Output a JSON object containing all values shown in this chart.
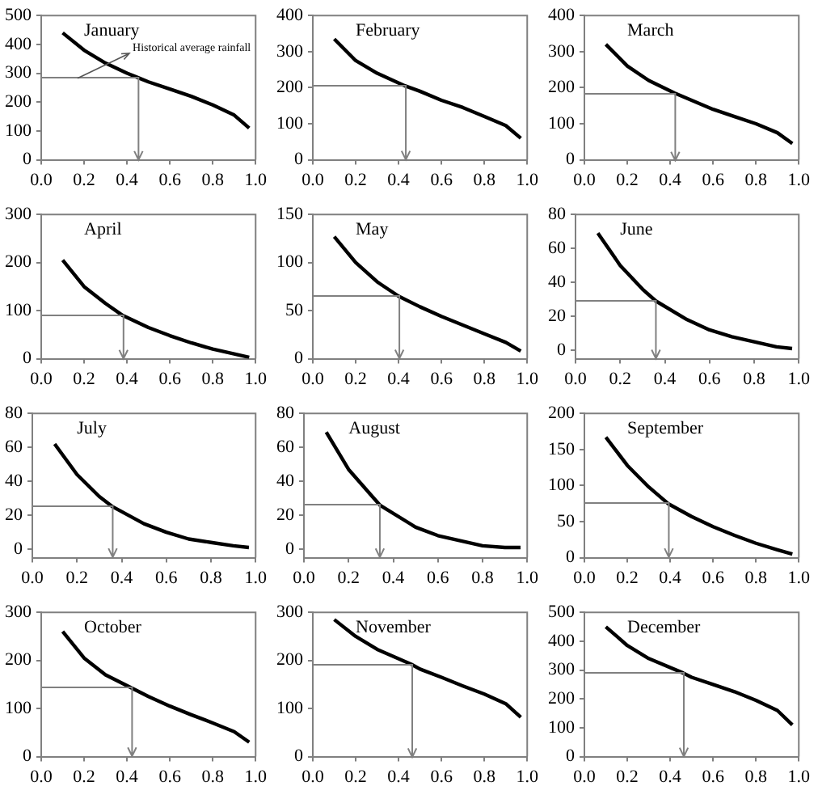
{
  "chart_data": [
    {
      "type": "line",
      "title": "January",
      "annotations": [
        "Historical average rainfall"
      ],
      "x": [
        0.1,
        0.2,
        0.3,
        0.4,
        0.45,
        0.5,
        0.6,
        0.7,
        0.8,
        0.9,
        0.97
      ],
      "xlim": [
        0,
        1
      ],
      "xticks": [
        {
          "value": 0,
          "label": "0.0"
        },
        {
          "value": 0.2,
          "label": "0.2"
        },
        {
          "value": 0.4,
          "label": "0.4"
        },
        {
          "value": 0.6,
          "label": "0.6"
        },
        {
          "value": 0.8,
          "label": "0.8"
        },
        {
          "value": 1,
          "label": "1.0"
        }
      ],
      "ylim": [
        0,
        500
      ],
      "yticks": [
        0,
        100,
        200,
        300,
        400,
        500
      ],
      "series": [
        {
          "color": "#000000",
          "values": [
            440,
            380,
            335,
            300,
            285,
            270,
            245,
            220,
            190,
            155,
            110
          ]
        },
        {
          "color": "#808080",
          "x": [
            0,
            0.45,
            0.45
          ],
          "values": [
            285,
            285,
            0
          ]
        }
      ]
    },
    {
      "type": "line",
      "title": "February",
      "x": [
        0.1,
        0.2,
        0.3,
        0.43,
        0.5,
        0.6,
        0.7,
        0.8,
        0.9,
        0.97
      ],
      "xlim": [
        0,
        1
      ],
      "xticks": [
        {
          "value": 0,
          "label": "0.0"
        },
        {
          "value": 0.2,
          "label": "0.2"
        },
        {
          "value": 0.4,
          "label": "0.4"
        },
        {
          "value": 0.6,
          "label": "0.6"
        },
        {
          "value": 0.8,
          "label": "0.8"
        },
        {
          "value": 1,
          "label": "1.0"
        }
      ],
      "ylim": [
        0,
        400
      ],
      "yticks": [
        0,
        100,
        200,
        300,
        400
      ],
      "series": [
        {
          "color": "#000000",
          "values": [
            335,
            275,
            240,
            205,
            190,
            165,
            145,
            120,
            95,
            60
          ]
        },
        {
          "color": "#808080",
          "x": [
            0,
            0.43,
            0.43
          ],
          "values": [
            205,
            205,
            0
          ]
        }
      ]
    },
    {
      "type": "line",
      "title": "March",
      "x": [
        0.1,
        0.2,
        0.3,
        0.42,
        0.5,
        0.6,
        0.7,
        0.8,
        0.9,
        0.97
      ],
      "xlim": [
        0,
        1
      ],
      "xticks": [
        {
          "value": 0,
          "label": "0.0"
        },
        {
          "value": 0.2,
          "label": "0.2"
        },
        {
          "value": 0.4,
          "label": "0.4"
        },
        {
          "value": 0.6,
          "label": "0.6"
        },
        {
          "value": 0.8,
          "label": "0.8"
        },
        {
          "value": 1,
          "label": "1.0"
        }
      ],
      "ylim": [
        0,
        400
      ],
      "yticks": [
        0,
        100,
        200,
        300,
        400
      ],
      "series": [
        {
          "color": "#000000",
          "values": [
            320,
            260,
            220,
            185,
            165,
            140,
            120,
            100,
            75,
            45
          ]
        },
        {
          "color": "#808080",
          "x": [
            0,
            0.42,
            0.42
          ],
          "values": [
            185,
            185,
            0
          ]
        }
      ]
    },
    {
      "type": "line",
      "title": "April",
      "x": [
        0.1,
        0.2,
        0.3,
        0.38,
        0.5,
        0.6,
        0.7,
        0.8,
        0.9,
        0.97
      ],
      "xlim": [
        0,
        1
      ],
      "xticks": [
        {
          "value": 0,
          "label": "0.0"
        },
        {
          "value": 0.2,
          "label": "0.2"
        },
        {
          "value": 0.4,
          "label": "0.4"
        },
        {
          "value": 0.6,
          "label": "0.6"
        },
        {
          "value": 0.8,
          "label": "0.8"
        },
        {
          "value": 1,
          "label": "1.0"
        }
      ],
      "ylim": [
        0,
        300
      ],
      "yticks": [
        0,
        100,
        200,
        300
      ],
      "series": [
        {
          "color": "#000000",
          "values": [
            205,
            150,
            115,
            90,
            65,
            48,
            33,
            20,
            10,
            3
          ]
        },
        {
          "color": "#808080",
          "x": [
            0,
            0.38,
            0.38
          ],
          "values": [
            90,
            90,
            0
          ]
        }
      ]
    },
    {
      "type": "line",
      "title": "May",
      "x": [
        0.1,
        0.2,
        0.3,
        0.4,
        0.5,
        0.6,
        0.7,
        0.8,
        0.9,
        0.97
      ],
      "xlim": [
        0,
        1
      ],
      "xticks": [
        {
          "value": 0,
          "label": "0.0"
        },
        {
          "value": 0.2,
          "label": "0.2"
        },
        {
          "value": 0.4,
          "label": "0.4"
        },
        {
          "value": 0.6,
          "label": "0.6"
        },
        {
          "value": 0.8,
          "label": "0.8"
        },
        {
          "value": 1,
          "label": "1.0"
        }
      ],
      "ylim": [
        0,
        150
      ],
      "yticks": [
        0,
        50,
        100,
        150
      ],
      "series": [
        {
          "color": "#000000",
          "values": [
            127,
            100,
            80,
            65,
            54,
            44,
            35,
            26,
            17,
            8
          ]
        },
        {
          "color": "#808080",
          "x": [
            0,
            0.4,
            0.4
          ],
          "values": [
            65,
            65,
            0
          ]
        }
      ]
    },
    {
      "type": "line",
      "title": "June",
      "x": [
        0.1,
        0.2,
        0.3,
        0.36,
        0.5,
        0.6,
        0.7,
        0.8,
        0.9,
        0.97
      ],
      "xlim": [
        0,
        1
      ],
      "xticks": [
        {
          "value": 0,
          "label": "0.0"
        },
        {
          "value": 0.2,
          "label": "0.2"
        },
        {
          "value": 0.4,
          "label": "0.4"
        },
        {
          "value": 0.6,
          "label": "0.6"
        },
        {
          "value": 0.8,
          "label": "0.8"
        },
        {
          "value": 1,
          "label": "1.0"
        }
      ],
      "ylim": [
        -5,
        80
      ],
      "yticks": [
        0,
        20,
        40,
        60,
        80
      ],
      "series": [
        {
          "color": "#000000",
          "values": [
            69,
            50,
            36,
            29,
            18,
            12,
            8,
            5,
            2,
            1
          ]
        },
        {
          "color": "#808080",
          "x": [
            0,
            0.36,
            0.36
          ],
          "values": [
            29,
            29,
            -5
          ]
        }
      ]
    },
    {
      "type": "line",
      "title": "July",
      "x": [
        0.1,
        0.2,
        0.3,
        0.36,
        0.5,
        0.6,
        0.7,
        0.8,
        0.9,
        0.97
      ],
      "xlim": [
        0,
        1
      ],
      "xticks": [
        {
          "value": 0,
          "label": "0.0"
        },
        {
          "value": 0.2,
          "label": "0.2"
        },
        {
          "value": 0.4,
          "label": "0.4"
        },
        {
          "value": 0.6,
          "label": "0.6"
        },
        {
          "value": 0.8,
          "label": "0.8"
        },
        {
          "value": 1,
          "label": "1.0"
        }
      ],
      "ylim": [
        -5,
        80
      ],
      "yticks": [
        0,
        20,
        40,
        60,
        80
      ],
      "series": [
        {
          "color": "#000000",
          "values": [
            62,
            44,
            31,
            25,
            15,
            10,
            6,
            4,
            2,
            1
          ]
        },
        {
          "color": "#808080",
          "x": [
            0,
            0.36,
            0.36
          ],
          "values": [
            25,
            25,
            -5
          ]
        }
      ]
    },
    {
      "type": "line",
      "title": "August",
      "x": [
        0.1,
        0.2,
        0.3,
        0.34,
        0.5,
        0.6,
        0.7,
        0.8,
        0.9,
        0.97
      ],
      "xlim": [
        0,
        1
      ],
      "xticks": [
        {
          "value": 0,
          "label": "0.0"
        },
        {
          "value": 0.2,
          "label": "0.2"
        },
        {
          "value": 0.4,
          "label": "0.4"
        },
        {
          "value": 0.6,
          "label": "0.6"
        },
        {
          "value": 0.8,
          "label": "0.8"
        },
        {
          "value": 1,
          "label": "1.0"
        }
      ],
      "ylim": [
        -5,
        80
      ],
      "yticks": [
        0,
        20,
        40,
        60,
        80
      ],
      "series": [
        {
          "color": "#000000",
          "values": [
            69,
            47,
            32,
            26,
            13,
            8,
            5,
            2,
            1,
            1
          ]
        },
        {
          "color": "#808080",
          "x": [
            0,
            0.34,
            0.34
          ],
          "values": [
            26,
            26,
            -5
          ]
        }
      ]
    },
    {
      "type": "line",
      "title": "September",
      "x": [
        0.1,
        0.2,
        0.3,
        0.39,
        0.5,
        0.6,
        0.7,
        0.8,
        0.9,
        0.97
      ],
      "xlim": [
        0,
        1
      ],
      "xticks": [
        {
          "value": 0,
          "label": "0.0"
        },
        {
          "value": 0.2,
          "label": "0.2"
        },
        {
          "value": 0.4,
          "label": "0.4"
        },
        {
          "value": 0.6,
          "label": "0.6"
        },
        {
          "value": 0.8,
          "label": "0.8"
        },
        {
          "value": 1,
          "label": "1.0"
        }
      ],
      "ylim": [
        0,
        200
      ],
      "yticks": [
        0,
        50,
        100,
        150,
        200
      ],
      "series": [
        {
          "color": "#000000",
          "values": [
            167,
            128,
            98,
            75,
            57,
            43,
            31,
            20,
            11,
            5
          ]
        },
        {
          "color": "#808080",
          "x": [
            0,
            0.39,
            0.39
          ],
          "values": [
            75,
            75,
            0
          ]
        }
      ]
    },
    {
      "type": "line",
      "title": "October",
      "x": [
        0.1,
        0.2,
        0.3,
        0.42,
        0.5,
        0.6,
        0.7,
        0.8,
        0.9,
        0.97
      ],
      "xlim": [
        0,
        1
      ],
      "xticks": [
        {
          "value": 0,
          "label": "0.0"
        },
        {
          "value": 0.2,
          "label": "0.2"
        },
        {
          "value": 0.4,
          "label": "0.4"
        },
        {
          "value": 0.6,
          "label": "0.6"
        },
        {
          "value": 0.8,
          "label": "0.8"
        },
        {
          "value": 1,
          "label": "1.0"
        }
      ],
      "ylim": [
        0,
        300
      ],
      "yticks": [
        0,
        100,
        200,
        300
      ],
      "series": [
        {
          "color": "#000000",
          "values": [
            260,
            205,
            170,
            143,
            125,
            105,
            87,
            70,
            52,
            30
          ]
        },
        {
          "color": "#808080",
          "x": [
            0,
            0.42,
            0.42
          ],
          "values": [
            143,
            143,
            0
          ]
        }
      ]
    },
    {
      "type": "line",
      "title": "November",
      "x": [
        0.1,
        0.2,
        0.3,
        0.46,
        0.5,
        0.6,
        0.7,
        0.8,
        0.9,
        0.97
      ],
      "xlim": [
        0,
        1
      ],
      "xticks": [
        {
          "value": 0,
          "label": "0.0"
        },
        {
          "value": 0.2,
          "label": "0.2"
        },
        {
          "value": 0.4,
          "label": "0.4"
        },
        {
          "value": 0.6,
          "label": "0.6"
        },
        {
          "value": 0.8,
          "label": "0.8"
        },
        {
          "value": 1,
          "label": "1.0"
        }
      ],
      "ylim": [
        0,
        300
      ],
      "yticks": [
        0,
        100,
        200,
        300
      ],
      "series": [
        {
          "color": "#000000",
          "values": [
            285,
            250,
            223,
            192,
            182,
            165,
            147,
            130,
            110,
            82
          ]
        },
        {
          "color": "#808080",
          "x": [
            0,
            0.46,
            0.46
          ],
          "values": [
            192,
            192,
            0
          ]
        }
      ]
    },
    {
      "type": "line",
      "title": "December",
      "x": [
        0.1,
        0.2,
        0.3,
        0.46,
        0.5,
        0.6,
        0.7,
        0.8,
        0.9,
        0.97
      ],
      "xlim": [
        0,
        1
      ],
      "xticks": [
        {
          "value": 0,
          "label": "0.0"
        },
        {
          "value": 0.2,
          "label": "0.2"
        },
        {
          "value": 0.4,
          "label": "0.4"
        },
        {
          "value": 0.6,
          "label": "0.6"
        },
        {
          "value": 0.8,
          "label": "0.8"
        },
        {
          "value": 1,
          "label": "1.0"
        }
      ],
      "ylim": [
        0,
        500
      ],
      "yticks": [
        0,
        100,
        200,
        300,
        400,
        500
      ],
      "series": [
        {
          "color": "#000000",
          "values": [
            450,
            385,
            340,
            290,
            275,
            250,
            225,
            195,
            160,
            110
          ]
        },
        {
          "color": "#808080",
          "x": [
            0,
            0.46,
            0.46
          ],
          "values": [
            290,
            290,
            0
          ]
        }
      ]
    }
  ]
}
